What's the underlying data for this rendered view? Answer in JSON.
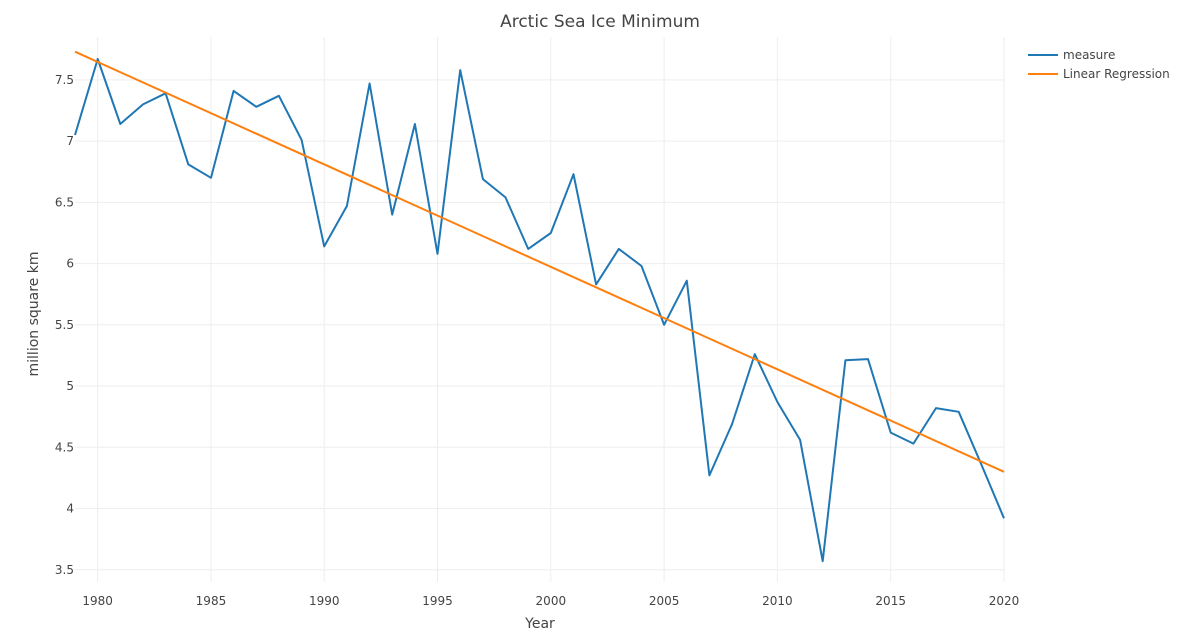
{
  "chart_data": {
    "type": "line",
    "title": "Arctic Sea Ice Minimum",
    "xlabel": "Year",
    "ylabel": "million square km",
    "xlim": [
      1979,
      2020
    ],
    "ylim": [
      3.4,
      7.85
    ],
    "xticks": [
      1980,
      1985,
      1990,
      1995,
      2000,
      2005,
      2010,
      2015,
      2020
    ],
    "xtick_labels": [
      "1980",
      "1985",
      "1990",
      "1995",
      "2000",
      "2005",
      "2010",
      "2015",
      "2020"
    ],
    "yticks": [
      3.5,
      4,
      4.5,
      5,
      5.5,
      6,
      6.5,
      7,
      7.5
    ],
    "ytick_labels": [
      "3.5",
      "4",
      "4.5",
      "5",
      "5.5",
      "6",
      "6.5",
      "7",
      "7.5"
    ],
    "grid": true,
    "legend_position": "top-right",
    "series": [
      {
        "name": "measure",
        "color": "#1f77b4",
        "x": [
          1979,
          1980,
          1981,
          1982,
          1983,
          1984,
          1985,
          1986,
          1987,
          1988,
          1989,
          1990,
          1991,
          1992,
          1993,
          1994,
          1995,
          1996,
          1997,
          1998,
          1999,
          2000,
          2001,
          2002,
          2003,
          2004,
          2005,
          2006,
          2007,
          2008,
          2009,
          2010,
          2011,
          2012,
          2013,
          2014,
          2015,
          2016,
          2017,
          2018,
          2019,
          2020
        ],
        "values": [
          7.05,
          7.67,
          7.14,
          7.3,
          7.39,
          6.81,
          6.7,
          7.41,
          7.28,
          7.37,
          7.01,
          6.14,
          6.47,
          7.47,
          6.4,
          7.14,
          6.08,
          7.58,
          6.69,
          6.54,
          6.12,
          6.25,
          6.73,
          5.83,
          6.12,
          5.98,
          5.5,
          5.86,
          4.27,
          4.69,
          5.26,
          4.87,
          4.56,
          3.57,
          5.21,
          5.22,
          4.62,
          4.53,
          4.82,
          4.79,
          4.36,
          3.92
        ]
      },
      {
        "name": "Linear Regression",
        "color": "#ff7f0e",
        "x": [
          1979,
          2020
        ],
        "values": [
          7.73,
          4.3
        ]
      }
    ]
  }
}
